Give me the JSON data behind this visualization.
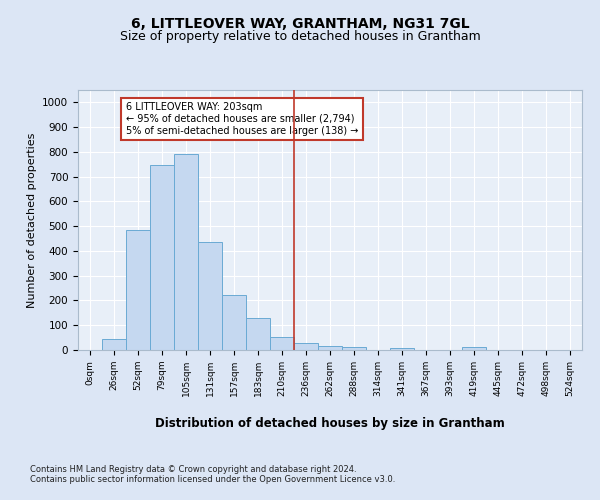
{
  "title": "6, LITTLEOVER WAY, GRANTHAM, NG31 7GL",
  "subtitle": "Size of property relative to detached houses in Grantham",
  "xlabel": "Distribution of detached houses by size in Grantham",
  "ylabel": "Number of detached properties",
  "bar_labels": [
    "0sqm",
    "26sqm",
    "52sqm",
    "79sqm",
    "105sqm",
    "131sqm",
    "157sqm",
    "183sqm",
    "210sqm",
    "236sqm",
    "262sqm",
    "288sqm",
    "314sqm",
    "341sqm",
    "367sqm",
    "393sqm",
    "419sqm",
    "445sqm",
    "472sqm",
    "498sqm",
    "524sqm"
  ],
  "bar_values": [
    0,
    46,
    485,
    748,
    793,
    435,
    223,
    130,
    53,
    30,
    18,
    13,
    0,
    10,
    0,
    0,
    11,
    0,
    0,
    0,
    0
  ],
  "bar_color": "#c5d8f0",
  "bar_edge_color": "#6aaad4",
  "vline_x": 8.5,
  "vline_color": "#c0392b",
  "annotation_text": "6 LITTLEOVER WAY: 203sqm\n← 95% of detached houses are smaller (2,794)\n5% of semi-detached houses are larger (138) →",
  "annotation_box_color": "#c0392b",
  "ylim": [
    0,
    1050
  ],
  "yticks": [
    0,
    100,
    200,
    300,
    400,
    500,
    600,
    700,
    800,
    900,
    1000
  ],
  "bg_color": "#dce6f5",
  "plot_bg_color": "#e8eff8",
  "footer_text": "Contains HM Land Registry data © Crown copyright and database right 2024.\nContains public sector information licensed under the Open Government Licence v3.0.",
  "title_fontsize": 10,
  "subtitle_fontsize": 9,
  "xlabel_fontsize": 8.5,
  "ylabel_fontsize": 8
}
